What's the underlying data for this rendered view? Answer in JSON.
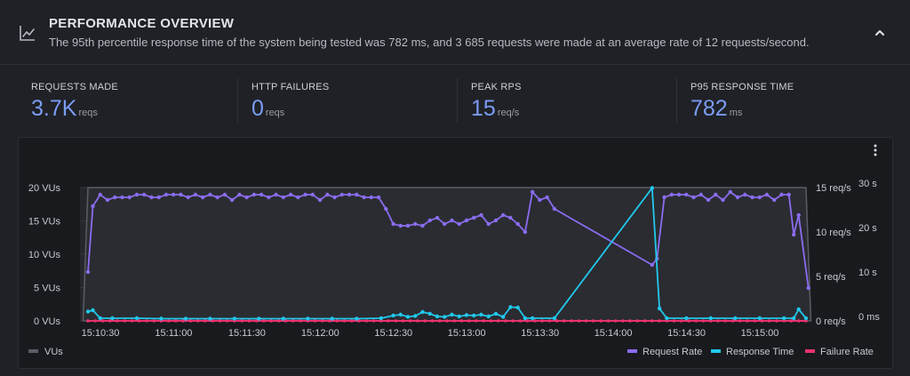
{
  "header": {
    "title": "PERFORMANCE OVERVIEW",
    "subtitle": "The 95th percentile response time of the system being tested was 782 ms, and 3 685 requests were made at an average rate of 12 requests/second.",
    "icon": "line-chart-icon",
    "collapse_icon": "chevron-up-icon"
  },
  "stats": [
    {
      "label": "REQUESTS MADE",
      "value": "3.7K",
      "unit": "reqs"
    },
    {
      "label": "HTTP FAILURES",
      "value": "0",
      "unit": "reqs"
    },
    {
      "label": "PEAK RPS",
      "value": "15",
      "unit": "req/s"
    },
    {
      "label": "P95 RESPONSE TIME",
      "value": "782",
      "unit": "ms"
    }
  ],
  "colors": {
    "accent": "#7b9cf5",
    "vus": "#5a5d66",
    "request_rate": "#8b6cf0",
    "response_time": "#22c8ec",
    "failure_rate": "#e8336f"
  },
  "chart_data": {
    "type": "line",
    "x_ticks": [
      "15:10:30",
      "15:11:00",
      "15:11:30",
      "15:12:00",
      "15:12:30",
      "15:13:00",
      "15:13:30",
      "15:14:00",
      "15:14:30",
      "15:15:00"
    ],
    "y_left": {
      "ticks": [
        "0 VUs",
        "5 VUs",
        "10 VUs",
        "15 VUs",
        "20 VUs"
      ],
      "range": [
        0,
        20
      ]
    },
    "y_right1": {
      "ticks": [
        "0 req/s",
        "5 req/s",
        "10 req/s",
        "15 req/s"
      ],
      "range": [
        0,
        15
      ]
    },
    "y_right2": {
      "ticks": [
        "0 ms",
        "10 s",
        "20 s",
        "30 s"
      ],
      "range": [
        0,
        30
      ]
    },
    "legend": {
      "vus": "VUs",
      "request_rate": "Request Rate",
      "response_time": "Response Time",
      "failure_rate": "Failure Rate"
    },
    "time_range": [
      "15:10:28",
      "15:15:26"
    ],
    "vus_series": [
      [
        "15:10:28",
        0
      ],
      [
        "15:10:30",
        20
      ],
      [
        "15:15:24",
        20
      ],
      [
        "15:15:26",
        0
      ]
    ],
    "request_rate": [
      [
        "15:10:30",
        5.5
      ],
      [
        "15:10:32",
        12.9
      ],
      [
        "15:10:35",
        14.2
      ],
      [
        "15:10:38",
        13.6
      ],
      [
        "15:10:41",
        13.9
      ],
      [
        "15:10:44",
        13.9
      ],
      [
        "15:10:47",
        13.9
      ],
      [
        "15:10:50",
        14.2
      ],
      [
        "15:10:53",
        14.2
      ],
      [
        "15:10:56",
        13.9
      ],
      [
        "15:10:59",
        13.9
      ],
      [
        "15:11:02",
        14.2
      ],
      [
        "15:11:05",
        14.2
      ],
      [
        "15:11:08",
        14.2
      ],
      [
        "15:11:11",
        13.9
      ],
      [
        "15:11:14",
        14.2
      ],
      [
        "15:11:17",
        13.9
      ],
      [
        "15:11:20",
        14.2
      ],
      [
        "15:11:23",
        13.9
      ],
      [
        "15:11:26",
        14.2
      ],
      [
        "15:11:29",
        13.6
      ],
      [
        "15:11:32",
        14.2
      ],
      [
        "15:11:35",
        13.9
      ],
      [
        "15:11:38",
        14.2
      ],
      [
        "15:11:41",
        14.2
      ],
      [
        "15:11:44",
        13.9
      ],
      [
        "15:11:47",
        14.2
      ],
      [
        "15:11:50",
        13.9
      ],
      [
        "15:11:53",
        14.2
      ],
      [
        "15:11:56",
        13.9
      ],
      [
        "15:11:59",
        14.2
      ],
      [
        "15:12:02",
        14.2
      ],
      [
        "15:12:05",
        13.6
      ],
      [
        "15:12:08",
        14.2
      ],
      [
        "15:12:11",
        13.9
      ],
      [
        "15:12:14",
        14.2
      ],
      [
        "15:12:17",
        14.2
      ],
      [
        "15:12:20",
        14.2
      ],
      [
        "15:12:23",
        13.9
      ],
      [
        "15:12:26",
        13.9
      ],
      [
        "15:12:29",
        13.9
      ],
      [
        "15:12:32",
        12.6
      ],
      [
        "15:12:35",
        10.9
      ],
      [
        "15:12:38",
        10.7
      ],
      [
        "15:12:41",
        10.7
      ],
      [
        "15:12:44",
        10.9
      ],
      [
        "15:12:47",
        10.7
      ],
      [
        "15:12:50",
        11.3
      ],
      [
        "15:12:53",
        11.6
      ],
      [
        "15:12:56",
        10.9
      ],
      [
        "15:12:59",
        11.3
      ],
      [
        "15:13:02",
        10.9
      ],
      [
        "15:13:05",
        11.3
      ],
      [
        "15:13:08",
        11.6
      ],
      [
        "15:13:11",
        11.9
      ],
      [
        "15:13:14",
        10.9
      ],
      [
        "15:13:17",
        11.3
      ],
      [
        "15:13:20",
        11.9
      ],
      [
        "15:13:23",
        11.6
      ],
      [
        "15:13:26",
        10.9
      ],
      [
        "15:13:29",
        10.0
      ],
      [
        "15:13:32",
        14.5
      ],
      [
        "15:13:35",
        13.6
      ],
      [
        "15:13:38",
        13.9
      ],
      [
        "15:13:41",
        12.6
      ],
      [
        "15:14:21",
        6.3
      ],
      [
        "15:14:23",
        7.0
      ],
      [
        "15:14:26",
        13.9
      ],
      [
        "15:14:29",
        14.2
      ],
      [
        "15:14:32",
        14.2
      ],
      [
        "15:14:35",
        14.2
      ],
      [
        "15:14:38",
        13.9
      ],
      [
        "15:14:41",
        14.2
      ],
      [
        "15:14:44",
        13.6
      ],
      [
        "15:14:47",
        14.2
      ],
      [
        "15:14:50",
        13.6
      ],
      [
        "15:14:53",
        14.5
      ],
      [
        "15:14:56",
        13.9
      ],
      [
        "15:14:59",
        14.2
      ],
      [
        "15:15:02",
        13.9
      ],
      [
        "15:15:05",
        13.9
      ],
      [
        "15:15:08",
        14.2
      ],
      [
        "15:15:11",
        13.6
      ],
      [
        "15:15:14",
        14.2
      ],
      [
        "15:15:17",
        14.2
      ],
      [
        "15:15:19",
        9.7
      ],
      [
        "15:15:21",
        11.9
      ],
      [
        "15:15:25",
        3.7
      ]
    ],
    "response_time": [
      [
        "15:10:30",
        2.1
      ],
      [
        "15:10:32",
        2.4
      ],
      [
        "15:10:35",
        0.6
      ],
      [
        "15:10:40",
        0.6
      ],
      [
        "15:10:50",
        0.6
      ],
      [
        "15:11:00",
        0.5
      ],
      [
        "15:11:10",
        0.5
      ],
      [
        "15:11:20",
        0.5
      ],
      [
        "15:11:30",
        0.5
      ],
      [
        "15:11:40",
        0.5
      ],
      [
        "15:11:50",
        0.5
      ],
      [
        "15:12:00",
        0.5
      ],
      [
        "15:12:10",
        0.5
      ],
      [
        "15:12:20",
        0.5
      ],
      [
        "15:12:30",
        0.6
      ],
      [
        "15:12:35",
        1.2
      ],
      [
        "15:12:38",
        1.4
      ],
      [
        "15:12:41",
        0.9
      ],
      [
        "15:12:44",
        1.1
      ],
      [
        "15:12:47",
        2.0
      ],
      [
        "15:12:50",
        1.6
      ],
      [
        "15:12:53",
        1.0
      ],
      [
        "15:12:56",
        0.9
      ],
      [
        "15:12:59",
        1.4
      ],
      [
        "15:13:02",
        1.0
      ],
      [
        "15:13:05",
        1.3
      ],
      [
        "15:13:08",
        1.2
      ],
      [
        "15:13:11",
        1.4
      ],
      [
        "15:13:14",
        1.0
      ],
      [
        "15:13:17",
        1.6
      ],
      [
        "15:13:20",
        0.9
      ],
      [
        "15:13:23",
        3.1
      ],
      [
        "15:13:26",
        3.0
      ],
      [
        "15:13:29",
        0.6
      ],
      [
        "15:13:32",
        0.6
      ],
      [
        "15:13:41",
        0.6
      ],
      [
        "15:14:21",
        29.9
      ],
      [
        "15:14:24",
        2.8
      ],
      [
        "15:14:27",
        0.6
      ],
      [
        "15:14:35",
        0.6
      ],
      [
        "15:14:45",
        0.6
      ],
      [
        "15:14:55",
        0.6
      ],
      [
        "15:15:05",
        0.6
      ],
      [
        "15:15:15",
        0.6
      ],
      [
        "15:15:19",
        0.6
      ],
      [
        "15:15:21",
        2.6
      ],
      [
        "15:15:24",
        0.6
      ]
    ],
    "failure_rate": [
      [
        "15:10:30",
        0
      ],
      [
        "15:15:24",
        0
      ]
    ]
  }
}
